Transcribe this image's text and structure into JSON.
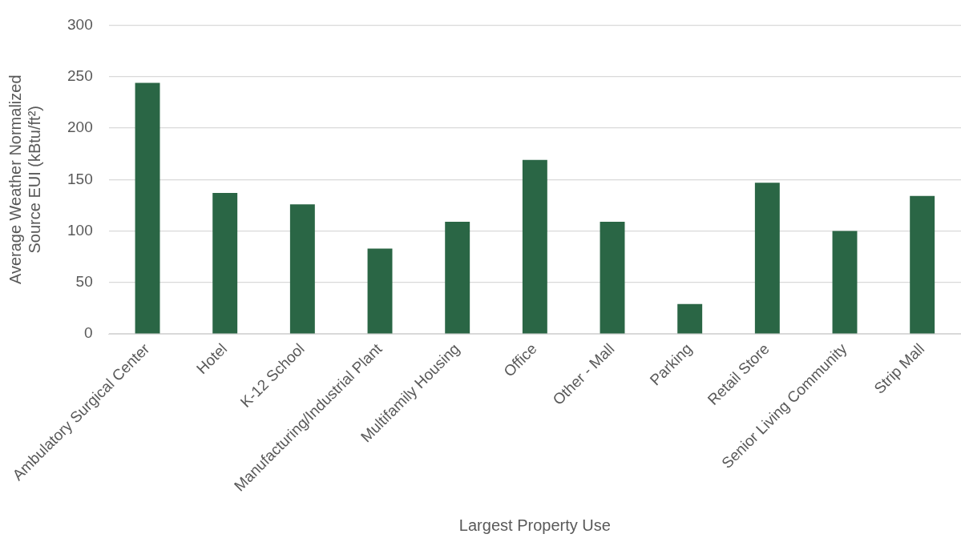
{
  "chart_data": {
    "type": "bar",
    "xlabel": "Largest Property Use",
    "ylabel": "Average Weather Normalized Source EUI (kBtu/ft²)",
    "categories": [
      "Ambulatory Surgical Center",
      "Hotel",
      "K-12 School",
      "Manufacturing/Industrial Plant",
      "Multifamily Housing",
      "Office",
      "Other - Mall",
      "Parking",
      "Retail Store",
      "Senior Living Community",
      "Strip Mall"
    ],
    "values": [
      244,
      137,
      126,
      83,
      109,
      169,
      109,
      29,
      147,
      100,
      134
    ],
    "color": "#2a6645",
    "ylim": [
      0,
      300
    ],
    "yticks": [
      0,
      50,
      100,
      150,
      200,
      250,
      300
    ],
    "grid": "y",
    "legend": false
  }
}
